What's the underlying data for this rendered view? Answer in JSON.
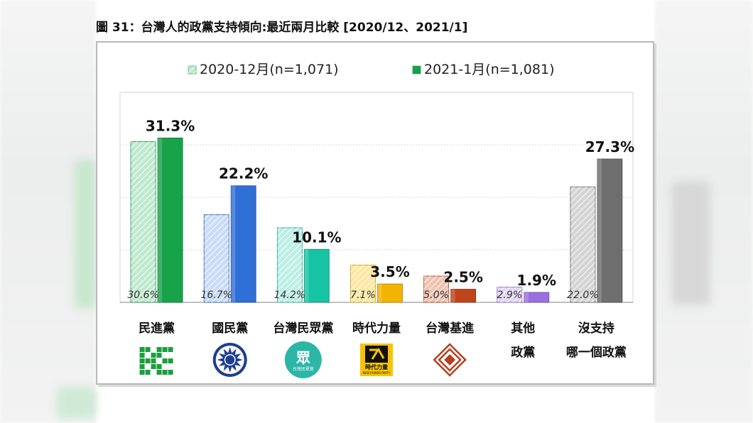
{
  "figure_title": "圖 31：台灣人的政黨支持傾向:最近兩月比較  [2020/12、2021/1]",
  "chart_data": {
    "type": "bar",
    "title": "",
    "xlabel": "",
    "ylabel": "",
    "ylim": [
      0,
      40
    ],
    "grid": true,
    "legend_position": "top",
    "categories": [
      [
        "民進黨"
      ],
      [
        "國民黨"
      ],
      [
        "台灣民眾黨"
      ],
      [
        "時代力量"
      ],
      [
        "台灣基進"
      ],
      [
        "其他",
        "政黨"
      ],
      [
        "沒支持",
        "哪一個政黨"
      ]
    ],
    "series": [
      {
        "name": "2020-12月(n=1,071)",
        "values": [
          30.6,
          16.7,
          14.2,
          7.1,
          5.0,
          2.9,
          22.0
        ],
        "labels": [
          "30.6%",
          "16.7%",
          "14.2%",
          "7.1%",
          "5.0%",
          "2.9%",
          "22.0%"
        ]
      },
      {
        "name": "2021-1月(n=1,081)",
        "values": [
          31.3,
          22.2,
          10.1,
          3.5,
          2.5,
          1.9,
          27.3
        ],
        "labels": [
          "31.3%",
          "22.2%",
          "10.1%",
          "3.5%",
          "2.5%",
          "1.9%",
          "27.3%"
        ]
      }
    ],
    "colors_dark": [
      "#17a34a",
      "#2f6fd6",
      "#16c4a4",
      "#f2b400",
      "#c0441a",
      "#9b6fe0",
      "#6e6e6e"
    ],
    "colors_light": [
      "#bfe9cf",
      "#c9dbf5",
      "#bdeee5",
      "#fbe7a0",
      "#f0c2b0",
      "#e3d6f8",
      "#d4d4d4"
    ]
  },
  "party_logos": [
    {
      "icon": "dpp-logo-icon",
      "color": "#1a9e3e"
    },
    {
      "icon": "kmt-logo-icon",
      "color": "#1d3f8f"
    },
    {
      "icon": "tpp-logo-icon",
      "color": "#2cb6a6",
      "text": "台灣民眾黨"
    },
    {
      "icon": "npp-logo-icon",
      "color": "#f5c400",
      "text": "時代力量",
      "subtext": "NEW POWER PARTY"
    },
    {
      "icon": "tsp-logo-icon",
      "color": "#b5401f"
    }
  ]
}
